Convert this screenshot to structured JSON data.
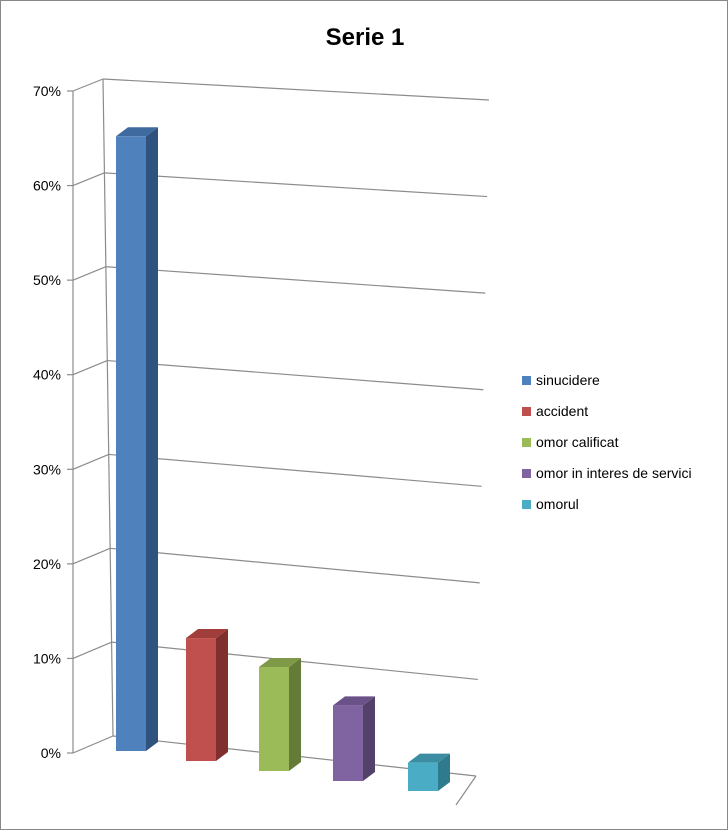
{
  "chart_data": {
    "type": "bar",
    "title": "Serie 1",
    "categories": [
      "sinucidere",
      "accident",
      "omor calificat",
      "omor in interes de servici",
      "omorul"
    ],
    "values": [
      65,
      13,
      11,
      8,
      3
    ],
    "colors": [
      "#4F81BD",
      "#C0504D",
      "#9BBB59",
      "#8064A2",
      "#4BACC6"
    ],
    "side_colors": [
      "#30527E",
      "#7F302E",
      "#657C39",
      "#544169",
      "#2F7A8C"
    ],
    "top_colors": [
      "#3E6AA0",
      "#A13E3B",
      "#7E9A48",
      "#6A5288",
      "#3C8DA3"
    ],
    "yticks": [
      "0%",
      "10%",
      "20%",
      "30%",
      "40%",
      "50%",
      "60%",
      "70%"
    ],
    "ylim": [
      0,
      70
    ],
    "grid": true,
    "legend": "right",
    "style": "3d-column"
  }
}
